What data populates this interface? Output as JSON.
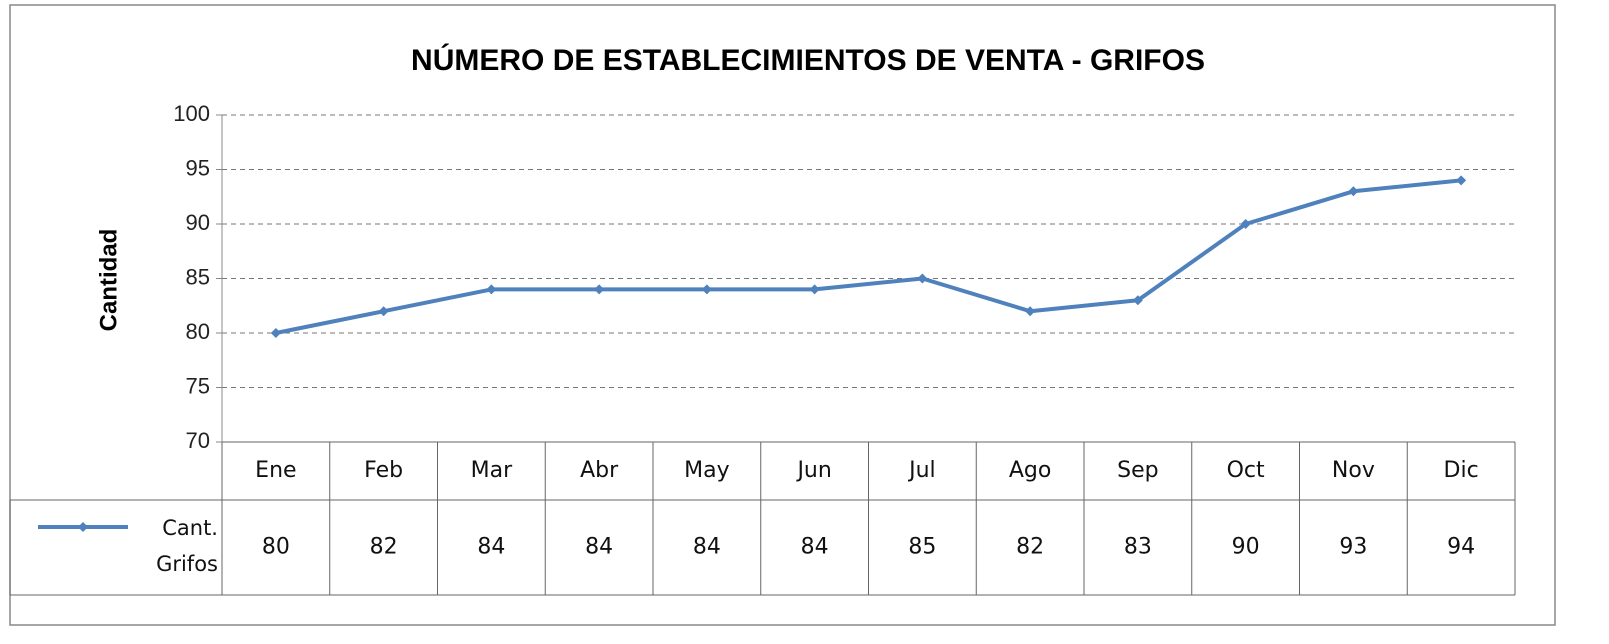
{
  "chart_data": {
    "type": "line",
    "title": "NÚMERO DE ESTABLECIMIENTOS DE VENTA - GRIFOS",
    "y_label": "Cantidad",
    "categories": [
      "Ene",
      "Feb",
      "Mar",
      "Abr",
      "May",
      "Jun",
      "Jul",
      "Ago",
      "Sep",
      "Oct",
      "Nov",
      "Dic"
    ],
    "series": [
      {
        "name": "Cant. Grifos",
        "color": "#4f81bd",
        "values": [
          80,
          82,
          84,
          84,
          84,
          84,
          85,
          82,
          83,
          90,
          93,
          94
        ]
      }
    ],
    "ylim": [
      70,
      100
    ],
    "yticks": [
      70,
      75,
      80,
      85,
      90,
      95,
      100
    ],
    "grid": true
  }
}
